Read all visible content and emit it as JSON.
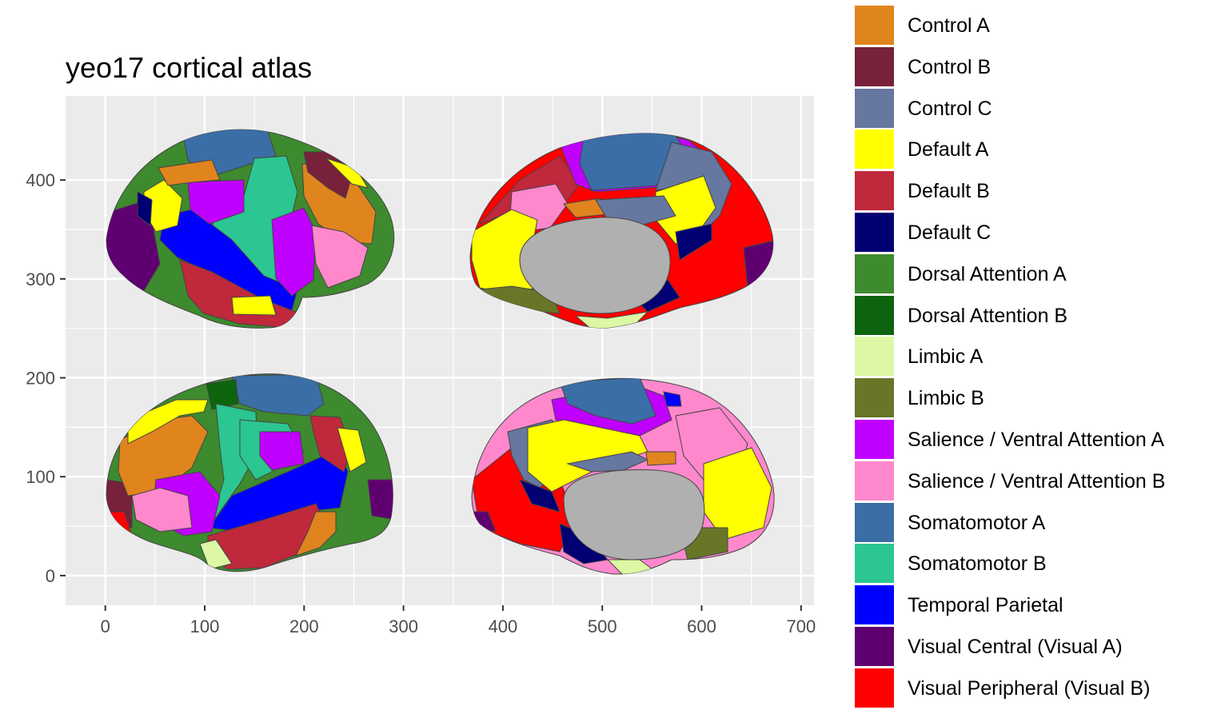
{
  "chart_data": {
    "type": "map",
    "title": "yeo17 cortical atlas",
    "xlabel": "",
    "ylabel": "",
    "x_ticks": [
      0,
      100,
      200,
      300,
      400,
      500,
      600,
      700
    ],
    "y_ticks": [
      0,
      100,
      200,
      300,
      400
    ],
    "xlim": [
      -40,
      713
    ],
    "ylim": [
      -30,
      485
    ],
    "grid": true,
    "legend_position": "right",
    "views": [
      "lateral left",
      "medial left",
      "lateral right",
      "medial right"
    ],
    "legend": [
      {
        "label": "Control A",
        "color": "#E0841E"
      },
      {
        "label": "Control B",
        "color": "#78213A"
      },
      {
        "label": "Control C",
        "color": "#6677A0"
      },
      {
        "label": "Default A",
        "color": "#FFFF00"
      },
      {
        "label": "Default B",
        "color": "#C0283C"
      },
      {
        "label": "Default C",
        "color": "#000073"
      },
      {
        "label": "Dorsal Attention A",
        "color": "#3E8A2E"
      },
      {
        "label": "Dorsal Attention B",
        "color": "#0C640F"
      },
      {
        "label": "Limbic A",
        "color": "#DCF8A4"
      },
      {
        "label": "Limbic B",
        "color": "#687628"
      },
      {
        "label": "Salience / Ventral Attention A",
        "color": "#C000FF"
      },
      {
        "label": "Salience / Ventral Attention B",
        "color": "#FF88CC"
      },
      {
        "label": "Somatomotor A",
        "color": "#3B6EA6"
      },
      {
        "label": "Somatomotor B",
        "color": "#2BC691"
      },
      {
        "label": "Temporal Parietal",
        "color": "#0000FF"
      },
      {
        "label": "Visual Central (Visual A)",
        "color": "#5F0070"
      },
      {
        "label": "Visual Peripheral (Visual B)",
        "color": "#FF0000"
      }
    ],
    "medial_wall_color": "#B0B0B0"
  }
}
